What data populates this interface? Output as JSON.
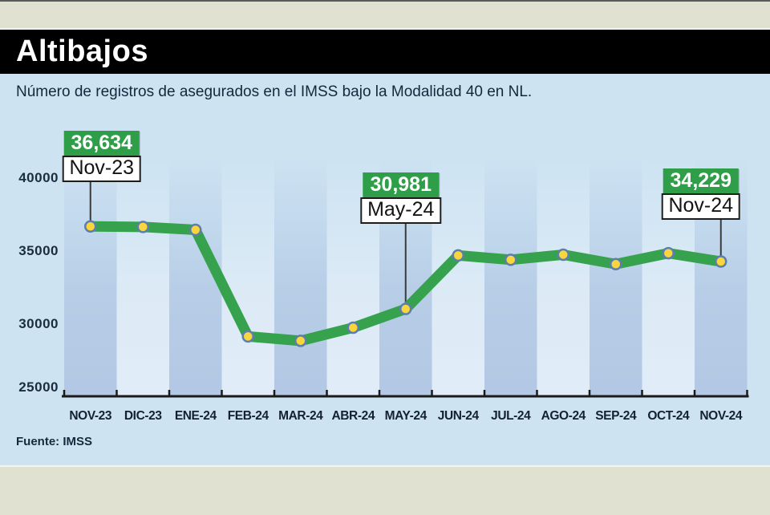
{
  "header": {
    "title": "Altibajos",
    "subtitle": "Número de registros de asegurados en el IMSS bajo la Modalidad 40 en NL."
  },
  "footer": {
    "source": "Fuente: IMSS"
  },
  "chart_data": {
    "type": "line",
    "title": "Altibajos",
    "subtitle": "Número de registros de asegurados en el IMSS bajo la Modalidad 40 en NL.",
    "source": "Fuente: IMSS",
    "categories": [
      "NOV-23",
      "DIC-23",
      "ENE-24",
      "FEB-24",
      "MAR-24",
      "ABR-24",
      "MAY-24",
      "JUN-24",
      "JUL-24",
      "AGO-24",
      "SEP-24",
      "OCT-24",
      "NOV-24"
    ],
    "values": [
      36634,
      36600,
      36400,
      29100,
      28800,
      29700,
      30981,
      34650,
      34350,
      34700,
      34050,
      34800,
      34229
    ],
    "ylim": [
      25000,
      40000
    ],
    "yticks": [
      40000,
      35000,
      30000,
      25000
    ],
    "grid": false,
    "legend": "none",
    "annotations": [
      {
        "index": 0,
        "value_label": "36,634",
        "date_label": "Nov-23"
      },
      {
        "index": 6,
        "value_label": "30,981",
        "date_label": "May-24"
      },
      {
        "index": 12,
        "value_label": "34,229",
        "date_label": "Nov-24"
      }
    ],
    "colors": {
      "line": "#36a24d",
      "marker_fill": "#f9d63e",
      "marker_stroke": "#5b7fad",
      "annotation_value_bg": "#2f9e48",
      "annotation_date_bg": "#ffffff",
      "axis": "#1a1a1a",
      "label_text": "#1b2c3e",
      "band_dark": "#b0c6e3",
      "band_light": "#e2edf8",
      "panel_bg": "#cde3f2",
      "title_bar_bg": "#000000",
      "page_bg": "#e1e1d1"
    }
  }
}
